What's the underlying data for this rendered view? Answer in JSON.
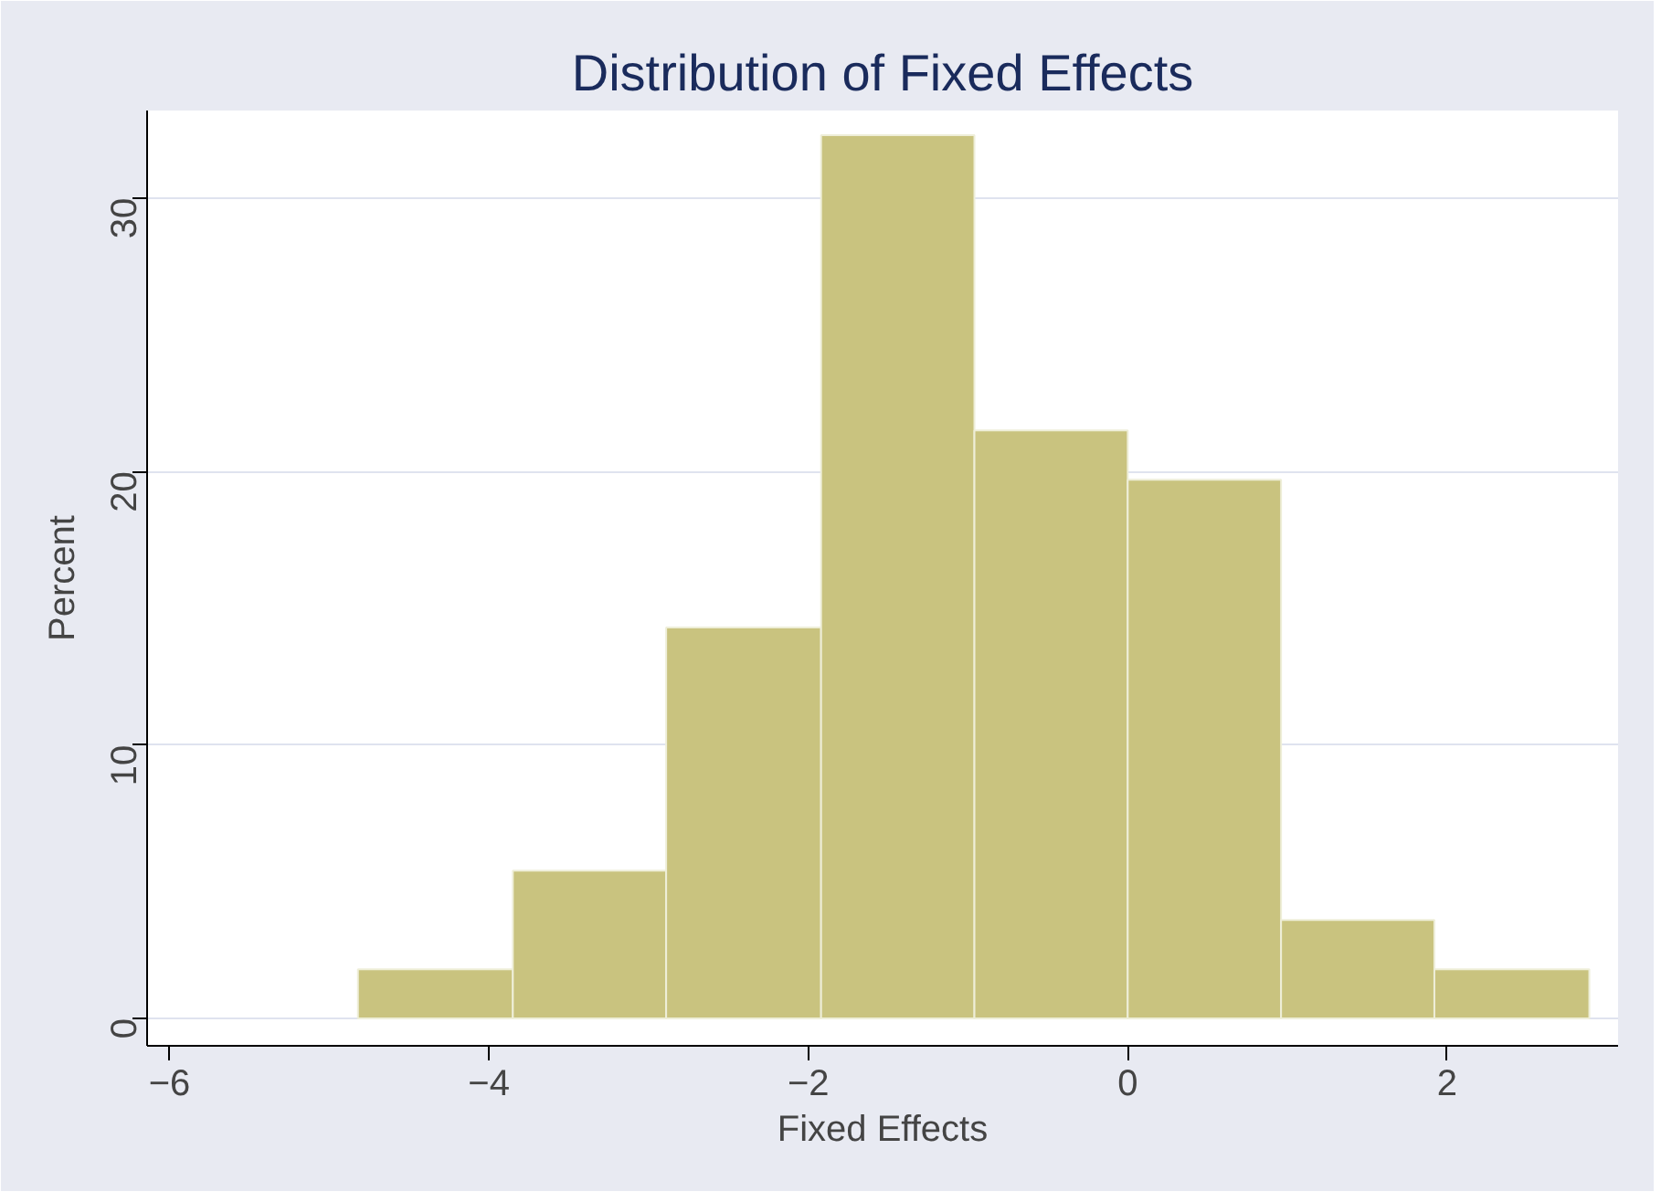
{
  "chart_data": {
    "type": "histogram",
    "title": "Distribution of Fixed Effects",
    "xlabel": "Fixed Effects",
    "ylabel": "Percent",
    "bins": [
      -4.82,
      -3.85,
      -2.89,
      -1.92,
      -0.96,
      0.0,
      0.96,
      1.92,
      2.89
    ],
    "values": [
      1.8,
      5.4,
      14.3,
      32.3,
      21.5,
      19.7,
      3.6,
      1.8
    ],
    "color": "#c9c37f",
    "xlim": [
      -6.14,
      3.07
    ],
    "ylim": [
      -1.0,
      33.2
    ],
    "xticks": [
      -6,
      -4,
      -2,
      0,
      2
    ],
    "yticks": [
      0,
      10,
      20,
      30
    ],
    "grid": "y"
  }
}
